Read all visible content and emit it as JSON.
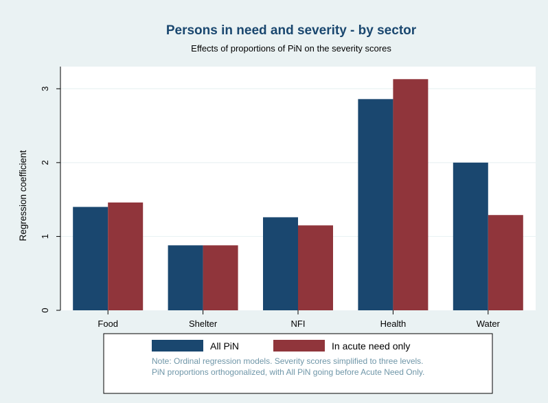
{
  "colors": {
    "background": "#eaf2f3",
    "plot_background": "#ffffff",
    "title": "#1a476f",
    "note": "#6f96a8",
    "grid": "#eaf2f3"
  },
  "chart_data": {
    "type": "bar",
    "title": "Persons in need and severity - by sector",
    "subtitle": "Effects of proportions of PiN on the severity scores",
    "xlabel": "",
    "ylabel": "Regression coefficient",
    "categories": [
      "Food",
      "Shelter",
      "NFI",
      "Health",
      "Water"
    ],
    "ylim": [
      0,
      3.3
    ],
    "yticks": [
      "0",
      "1",
      "2",
      "3"
    ],
    "grid": true,
    "legend_position": "bottom",
    "series": [
      {
        "name": "All PiN",
        "color": "#1a476f",
        "values": [
          1.4,
          0.88,
          1.26,
          2.86,
          2.0
        ]
      },
      {
        "name": "In acute need only",
        "color": "#90353b",
        "values": [
          1.46,
          0.88,
          1.15,
          3.13,
          1.29
        ]
      }
    ],
    "note": [
      "Note: Ordinal regression models. Severity scores simplified to three levels.",
      "PiN proportions orthogonalized, with All PiN going before Acute Need Only."
    ]
  }
}
